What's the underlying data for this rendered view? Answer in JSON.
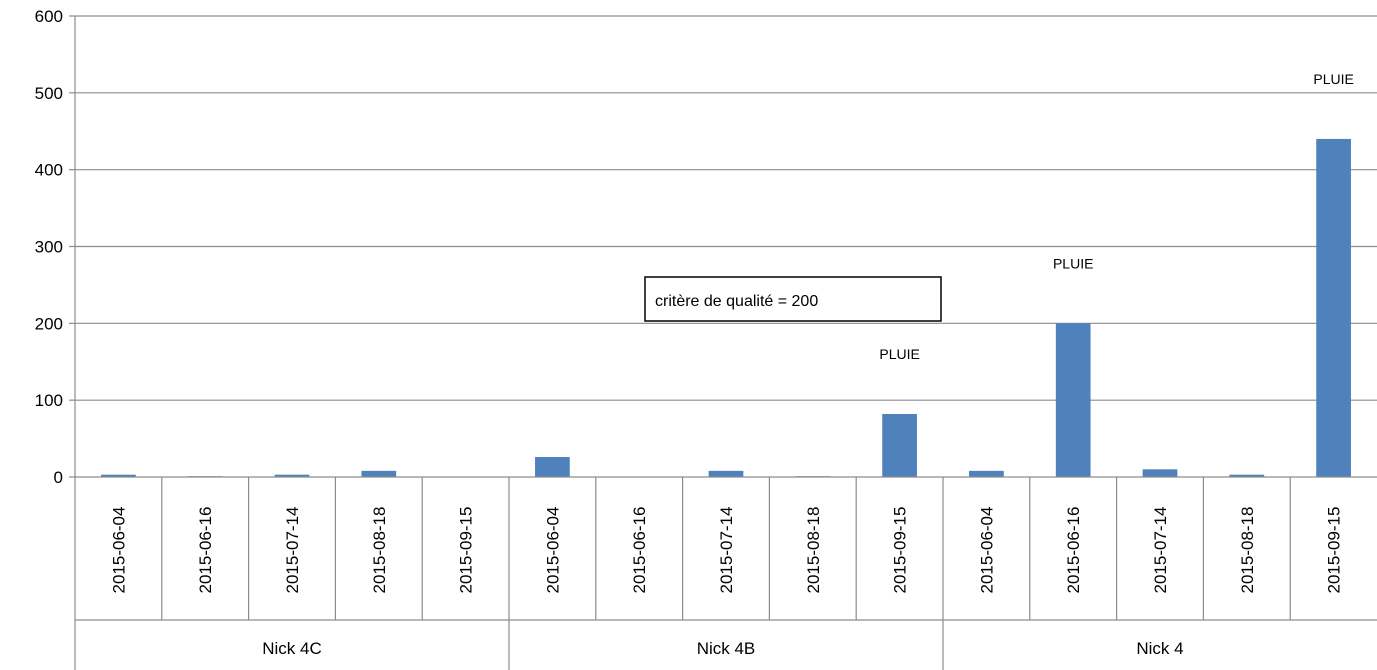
{
  "chart_data": {
    "type": "bar",
    "groups": [
      "Nick 4C",
      "Nick 4B",
      "Nick 4"
    ],
    "dates": [
      "2015-06-04",
      "2015-06-16",
      "2015-07-14",
      "2015-08-18",
      "2015-09-15"
    ],
    "categories": [
      {
        "group": "Nick 4C",
        "date": "2015-06-04"
      },
      {
        "group": "Nick 4C",
        "date": "2015-06-16"
      },
      {
        "group": "Nick 4C",
        "date": "2015-07-14"
      },
      {
        "group": "Nick 4C",
        "date": "2015-08-18"
      },
      {
        "group": "Nick 4C",
        "date": "2015-09-15"
      },
      {
        "group": "Nick 4B",
        "date": "2015-06-04"
      },
      {
        "group": "Nick 4B",
        "date": "2015-06-16"
      },
      {
        "group": "Nick 4B",
        "date": "2015-07-14"
      },
      {
        "group": "Nick 4B",
        "date": "2015-08-18"
      },
      {
        "group": "Nick 4B",
        "date": "2015-09-15"
      },
      {
        "group": "Nick 4",
        "date": "2015-06-04"
      },
      {
        "group": "Nick 4",
        "date": "2015-06-16"
      },
      {
        "group": "Nick 4",
        "date": "2015-07-14"
      },
      {
        "group": "Nick 4",
        "date": "2015-08-18"
      },
      {
        "group": "Nick 4",
        "date": "2015-09-15"
      }
    ],
    "values": [
      3,
      1,
      3,
      8,
      0,
      26,
      0,
      8,
      1,
      82,
      8,
      200,
      10,
      3,
      440
    ],
    "bar_labels": [
      "",
      "",
      "",
      "",
      "",
      "",
      "",
      "",
      "",
      "PLUIE",
      "",
      "PLUIE",
      "",
      "",
      "PLUIE"
    ],
    "ylim": [
      0,
      600
    ],
    "yticks": [
      0,
      100,
      200,
      300,
      400,
      500,
      600
    ],
    "grid": true,
    "bar_color": "#4f81bd",
    "annotation_box": "critère de qualité = 200"
  }
}
